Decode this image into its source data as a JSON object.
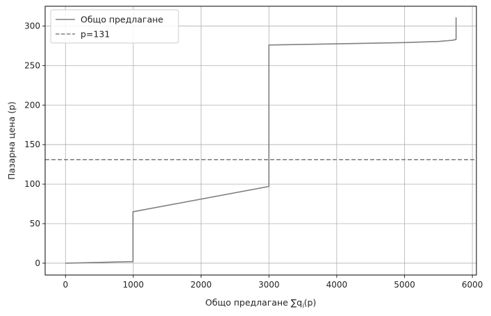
{
  "chart_data": {
    "type": "line",
    "title": "",
    "xlabel": "Общо предлагане ∑q",
    "xlabel_sub": "i",
    "xlabel_suffix": "(p)",
    "ylabel": "Пазарна цена (p)",
    "xlim": [
      -300,
      6060
    ],
    "ylim": [
      -15,
      325
    ],
    "xticks": [
      0,
      1000,
      2000,
      3000,
      4000,
      5000,
      6000
    ],
    "yticks": [
      0,
      50,
      100,
      150,
      200,
      250,
      300
    ],
    "grid": true,
    "legend_position": "top-left",
    "series": [
      {
        "name": "Общо предлагане",
        "style": "solid",
        "color": "#808080",
        "points": [
          [
            0,
            0
          ],
          [
            990,
            2
          ],
          [
            995,
            2
          ],
          [
            995,
            65
          ],
          [
            2995,
            97
          ],
          [
            3000,
            97
          ],
          [
            3000,
            276
          ],
          [
            5000,
            279
          ],
          [
            5500,
            280.5
          ],
          [
            5650,
            281.5
          ],
          [
            5710,
            282
          ],
          [
            5760,
            283
          ],
          [
            5760,
            311
          ]
        ]
      },
      {
        "name": "p=131",
        "style": "dashed",
        "color": "#808080",
        "hline": 131
      }
    ]
  }
}
